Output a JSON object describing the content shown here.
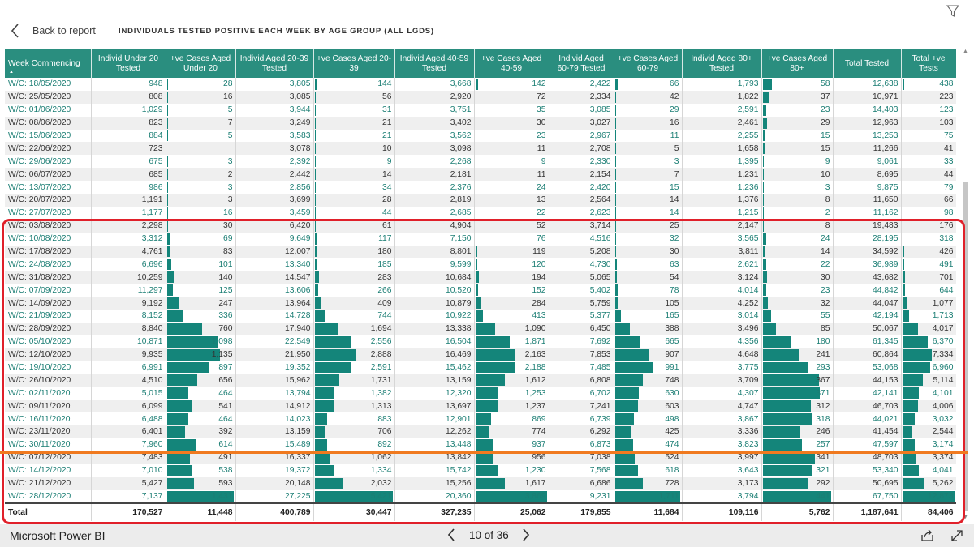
{
  "header": {
    "back_label": "Back to report",
    "title": "INDIVIDUALS TESTED POSITIVE EACH WEEK BY AGE GROUP (ALL LGDS)"
  },
  "table": {
    "columns": [
      "Week Commencing",
      "Individ Under 20 Tested",
      "+ve Cases Aged Under 20",
      "Individ Aged 20-39 Tested",
      "+ve Cases Aged 20-39",
      "Individ Aged 40-59 Tested",
      "+ve Cases Aged 40-59",
      "Individ Aged 60-79 Tested",
      "+ve Cases Aged 60-79",
      "Individ Aged 80+ Tested",
      "+ve Cases Aged 80+",
      "Total Tested",
      "Total +ve Tests"
    ],
    "rows": [
      [
        "W/C: 18/05/2020",
        "948",
        "28",
        "3,805",
        "144",
        "3,668",
        "142",
        "2,422",
        "66",
        "1,793",
        "58",
        "12,638",
        "438"
      ],
      [
        "W/C: 25/05/2020",
        "808",
        "16",
        "3,085",
        "56",
        "2,920",
        "72",
        "2,334",
        "42",
        "1,822",
        "37",
        "10,971",
        "223"
      ],
      [
        "W/C: 01/06/2020",
        "1,029",
        "5",
        "3,944",
        "31",
        "3,751",
        "35",
        "3,085",
        "29",
        "2,591",
        "23",
        "14,403",
        "123"
      ],
      [
        "W/C: 08/06/2020",
        "823",
        "7",
        "3,249",
        "21",
        "3,402",
        "30",
        "3,027",
        "16",
        "2,461",
        "29",
        "12,963",
        "103"
      ],
      [
        "W/C: 15/06/2020",
        "884",
        "5",
        "3,583",
        "21",
        "3,562",
        "23",
        "2,967",
        "11",
        "2,255",
        "15",
        "13,253",
        "75"
      ],
      [
        "W/C: 22/06/2020",
        "723",
        "",
        "3,078",
        "10",
        "3,098",
        "11",
        "2,708",
        "5",
        "1,658",
        "15",
        "11,266",
        "41"
      ],
      [
        "W/C: 29/06/2020",
        "675",
        "3",
        "2,392",
        "9",
        "2,268",
        "9",
        "2,330",
        "3",
        "1,395",
        "9",
        "9,061",
        "33"
      ],
      [
        "W/C: 06/07/2020",
        "685",
        "2",
        "2,442",
        "14",
        "2,181",
        "11",
        "2,154",
        "7",
        "1,231",
        "10",
        "8,695",
        "44"
      ],
      [
        "W/C: 13/07/2020",
        "986",
        "3",
        "2,856",
        "34",
        "2,376",
        "24",
        "2,420",
        "15",
        "1,236",
        "3",
        "9,875",
        "79"
      ],
      [
        "W/C: 20/07/2020",
        "1,191",
        "3",
        "3,699",
        "28",
        "2,819",
        "13",
        "2,564",
        "14",
        "1,376",
        "8",
        "11,650",
        "66"
      ],
      [
        "W/C: 27/07/2020",
        "1,177",
        "16",
        "3,459",
        "44",
        "2,685",
        "22",
        "2,623",
        "14",
        "1,215",
        "2",
        "11,162",
        "98"
      ],
      [
        "W/C: 03/08/2020",
        "2,298",
        "30",
        "6,420",
        "61",
        "4,904",
        "52",
        "3,714",
        "25",
        "2,147",
        "8",
        "19,483",
        "176"
      ],
      [
        "W/C: 10/08/2020",
        "3,312",
        "69",
        "9,649",
        "117",
        "7,150",
        "76",
        "4,516",
        "32",
        "3,565",
        "24",
        "28,195",
        "318"
      ],
      [
        "W/C: 17/08/2020",
        "4,761",
        "83",
        "12,007",
        "180",
        "8,801",
        "119",
        "5,208",
        "30",
        "3,811",
        "14",
        "34,592",
        "426"
      ],
      [
        "W/C: 24/08/2020",
        "6,696",
        "101",
        "13,340",
        "185",
        "9,599",
        "120",
        "4,730",
        "63",
        "2,621",
        "22",
        "36,989",
        "491"
      ],
      [
        "W/C: 31/08/2020",
        "10,259",
        "140",
        "14,547",
        "283",
        "10,684",
        "194",
        "5,065",
        "54",
        "3,124",
        "30",
        "43,682",
        "701"
      ],
      [
        "W/C: 07/09/2020",
        "11,297",
        "125",
        "13,606",
        "266",
        "10,520",
        "152",
        "5,402",
        "78",
        "4,014",
        "23",
        "44,842",
        "644"
      ],
      [
        "W/C: 14/09/2020",
        "9,192",
        "247",
        "13,964",
        "409",
        "10,879",
        "284",
        "5,759",
        "105",
        "4,252",
        "32",
        "44,047",
        "1,077"
      ],
      [
        "W/C: 21/09/2020",
        "8,152",
        "336",
        "14,728",
        "744",
        "10,922",
        "413",
        "5,377",
        "165",
        "3,014",
        "55",
        "42,194",
        "1,713"
      ],
      [
        "W/C: 28/09/2020",
        "8,840",
        "760",
        "17,940",
        "1,694",
        "13,338",
        "1,090",
        "6,450",
        "388",
        "3,496",
        "85",
        "50,067",
        "4,017"
      ],
      [
        "W/C: 05/10/2020",
        "10,871",
        "1,098",
        "22,549",
        "2,556",
        "16,504",
        "1,871",
        "7,692",
        "665",
        "4,356",
        "180",
        "61,345",
        "6,370"
      ],
      [
        "W/C: 12/10/2020",
        "9,935",
        "1,135",
        "21,950",
        "2,888",
        "16,469",
        "2,163",
        "7,853",
        "907",
        "4,648",
        "241",
        "60,864",
        "7,334"
      ],
      [
        "W/C: 19/10/2020",
        "6,991",
        "897",
        "19,352",
        "2,591",
        "15,462",
        "2,188",
        "7,485",
        "991",
        "3,775",
        "293",
        "53,068",
        "6,960"
      ],
      [
        "W/C: 26/10/2020",
        "4,510",
        "656",
        "15,962",
        "1,731",
        "13,159",
        "1,612",
        "6,808",
        "748",
        "3,709",
        "367",
        "44,153",
        "5,114"
      ],
      [
        "W/C: 02/11/2020",
        "5,015",
        "464",
        "13,794",
        "1,382",
        "12,320",
        "1,253",
        "6,702",
        "630",
        "4,307",
        "371",
        "42,141",
        "4,101"
      ],
      [
        "W/C: 09/11/2020",
        "6,099",
        "541",
        "14,912",
        "1,313",
        "13,697",
        "1,237",
        "7,241",
        "603",
        "4,747",
        "312",
        "46,703",
        "4,006"
      ],
      [
        "W/C: 16/11/2020",
        "6,488",
        "464",
        "14,023",
        "883",
        "12,901",
        "869",
        "6,739",
        "498",
        "3,867",
        "318",
        "44,021",
        "3,032"
      ],
      [
        "W/C: 23/11/2020",
        "6,401",
        "392",
        "13,159",
        "706",
        "12,262",
        "774",
        "6,292",
        "425",
        "3,336",
        "246",
        "41,454",
        "2,544"
      ],
      [
        "W/C: 30/11/2020",
        "7,960",
        "614",
        "15,489",
        "892",
        "13,448",
        "937",
        "6,873",
        "474",
        "3,823",
        "257",
        "47,597",
        "3,174"
      ],
      [
        "W/C: 07/12/2020",
        "7,483",
        "491",
        "16,337",
        "1,062",
        "13,842",
        "956",
        "7,038",
        "524",
        "3,997",
        "341",
        "48,703",
        "3,374"
      ],
      [
        "W/C: 14/12/2020",
        "7,010",
        "538",
        "19,372",
        "1,334",
        "15,742",
        "1,230",
        "7,568",
        "618",
        "3,643",
        "321",
        "53,340",
        "4,041"
      ],
      [
        "W/C: 21/12/2020",
        "5,427",
        "593",
        "20,148",
        "2,032",
        "15,256",
        "1,617",
        "6,686",
        "728",
        "3,173",
        "292",
        "50,695",
        "5,262"
      ],
      [
        "W/C: 28/12/2020",
        "7,137",
        "1,431",
        "27,225",
        "5,421",
        "20,360",
        "3,869",
        "9,231",
        "1,711",
        "3,794",
        "441",
        "67,750",
        "12,873"
      ]
    ],
    "total_row": [
      "Total",
      "170,527",
      "11,448",
      "400,789",
      "30,447",
      "327,235",
      "25,062",
      "179,855",
      "11,684",
      "109,116",
      "5,762",
      "1,187,641",
      "84,406"
    ],
    "bar_color": "#14857a",
    "header_color": "#2a8e7f"
  },
  "footer": {
    "brand": "Microsoft Power BI",
    "page_indicator": "10 of 36"
  },
  "icons": {
    "back": "chevron-left-icon",
    "filter": "filter-icon",
    "prev": "chevron-left-icon",
    "next": "chevron-right-icon",
    "share": "share-icon",
    "expand": "expand-icon"
  },
  "annotation_colors": {
    "box": "#e0202a",
    "line": "#f07a20"
  }
}
